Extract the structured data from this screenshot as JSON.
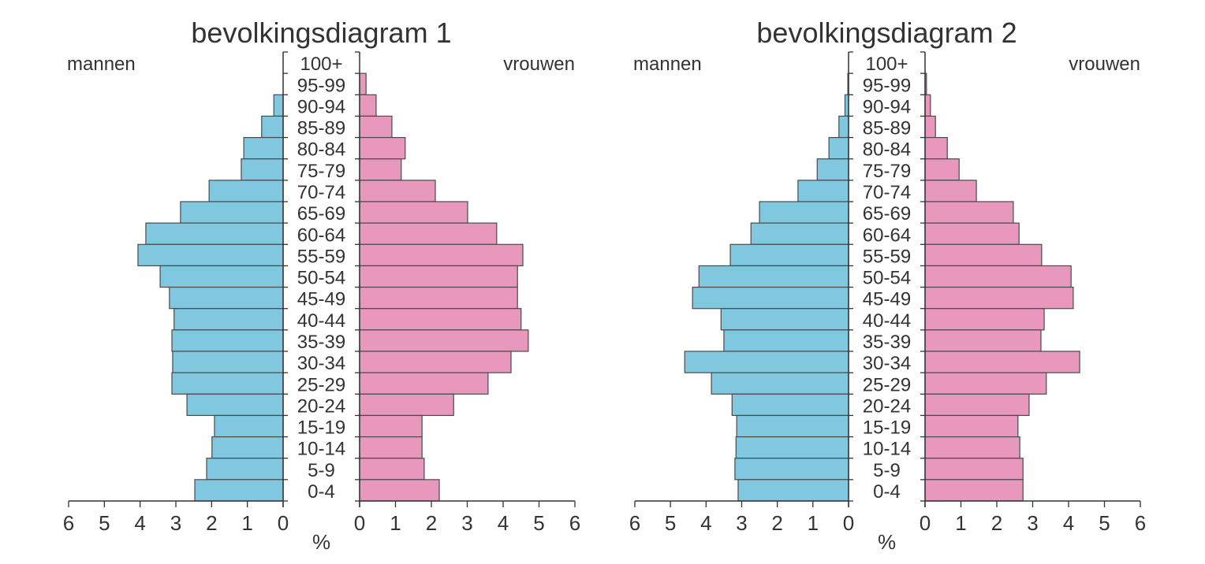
{
  "chart_data": [
    {
      "type": "bar",
      "orientation": "population-pyramid",
      "title": "bevolkingsdiagram 1",
      "left_label": "mannen",
      "right_label": "vrouwen",
      "xlabel": "%",
      "xlim": [
        0,
        6
      ],
      "xticks": [
        "0",
        "1",
        "2",
        "3",
        "4",
        "5",
        "6"
      ],
      "categories": [
        "100+",
        "95-99",
        "90-94",
        "85-89",
        "80-84",
        "75-79",
        "70-74",
        "65-69",
        "60-64",
        "55-59",
        "50-54",
        "45-49",
        "40-44",
        "35-39",
        "30-34",
        "25-29",
        "20-24",
        "15-19",
        "10-14",
        "5-9",
        "0-4"
      ],
      "series": [
        {
          "name": "mannen",
          "color": "#80C8E0",
          "values": [
            0,
            0,
            0.26,
            0.6,
            1.1,
            1.17,
            2.07,
            2.87,
            3.84,
            4.06,
            3.44,
            3.18,
            3.05,
            3.11,
            3.09,
            3.11,
            2.69,
            1.92,
            1.99,
            2.14,
            2.47
          ]
        },
        {
          "name": "vrouwen",
          "color": "#E898BC",
          "values": [
            0,
            0.18,
            0.46,
            0.9,
            1.27,
            1.16,
            2.11,
            3.01,
            3.82,
            4.55,
            4.4,
            4.4,
            4.5,
            4.7,
            4.22,
            3.58,
            2.62,
            1.74,
            1.74,
            1.8,
            2.22
          ]
        }
      ]
    },
    {
      "type": "bar",
      "orientation": "population-pyramid",
      "title": "bevolkingsdiagram 2",
      "left_label": "mannen",
      "right_label": "vrouwen",
      "xlabel": "%",
      "xlim": [
        0,
        6
      ],
      "xticks": [
        "0",
        "1",
        "2",
        "3",
        "4",
        "5",
        "6"
      ],
      "categories": [
        "100+",
        "95-99",
        "90-94",
        "85-89",
        "80-84",
        "75-79",
        "70-74",
        "65-69",
        "60-64",
        "55-59",
        "50-54",
        "45-49",
        "40-44",
        "35-39",
        "30-34",
        "25-29",
        "20-24",
        "15-19",
        "10-14",
        "5-9",
        "0-4"
      ],
      "series": [
        {
          "name": "mannen",
          "color": "#80C8E0",
          "values": [
            0,
            0.02,
            0.1,
            0.27,
            0.55,
            0.88,
            1.42,
            2.5,
            2.74,
            3.32,
            4.2,
            4.38,
            3.58,
            3.5,
            4.6,
            3.85,
            3.27,
            3.14,
            3.16,
            3.19,
            3.1
          ]
        },
        {
          "name": "vrouwen",
          "color": "#E898BC",
          "values": [
            0,
            0.04,
            0.15,
            0.29,
            0.62,
            0.95,
            1.43,
            2.46,
            2.62,
            3.25,
            4.07,
            4.13,
            3.32,
            3.23,
            4.31,
            3.38,
            2.9,
            2.59,
            2.64,
            2.73,
            2.73
          ]
        }
      ]
    }
  ]
}
